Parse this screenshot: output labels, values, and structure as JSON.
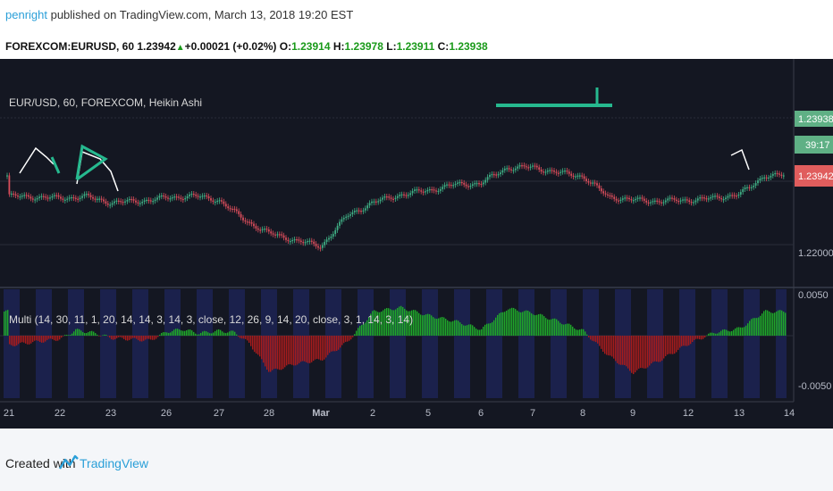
{
  "header": {
    "author": "penright",
    "published_text": " published on TradingView.com, March 13, 2018 19:20 EST",
    "symbol": "FOREXCOM:EURUSD, 60",
    "last": "1.23942",
    "change": "+0.00021 (+0.02%)",
    "o_label": "O:",
    "o_value": "1.23914",
    "h_label": "H:",
    "h_value": "1.23978",
    "l_label": "L:",
    "l_value": "1.23911",
    "c_label": "C:",
    "c_value": "1.23938"
  },
  "main_pane": {
    "legend": "EUR/USD, 60, FOREXCOM, Heikin Ashi",
    "price_tag_1": "1.23938",
    "countdown_tag": "39:17",
    "price_tag_2": "1.23942",
    "axis_tick": "1.22000"
  },
  "indicator_pane": {
    "legend": "Multi (14, 30, 11, 1, 20, 14, 14, 3, 14, 3, close, 12, 26, 9, 14, 20, close, 3, 1, 14, 3, 14)",
    "axis_top": "0.0050",
    "axis_bottom": "-0.0050"
  },
  "x_axis": {
    "labels": [
      "21",
      "22",
      "23",
      "26",
      "27",
      "28",
      "Mar",
      "2",
      "5",
      "6",
      "7",
      "8",
      "9",
      "12",
      "13",
      "14"
    ]
  },
  "footer": {
    "created_with": "Created with",
    "brand": "TradingView"
  },
  "colors": {
    "background": "#141722",
    "up_candle": "#3fae84",
    "down_candle": "#d84d5b",
    "histogram_up": "#1fa82a",
    "histogram_down": "#a81c1c",
    "signal_band": "#1d2458",
    "trendline": "#26b98f",
    "overlay_line": "#ffffff",
    "price_tag_green": "#5fb085",
    "price_tag_red": "#e05d5d"
  },
  "chart_data": {
    "type": "candlestick",
    "title": "EUR/USD, 60, FOREXCOM, Heikin Ashi",
    "x_labels": [
      "21",
      "22",
      "23",
      "26",
      "27",
      "28",
      "Mar",
      "2",
      "5",
      "6",
      "7",
      "8",
      "9",
      "12",
      "13",
      "14"
    ],
    "price_ticks": [
      1.22
    ],
    "last_price": 1.23938,
    "price_series": [
      {
        "x": 0,
        "close": 1.2336
      },
      {
        "x": 0.5,
        "close": 1.2334
      },
      {
        "x": 1,
        "close": 1.233
      },
      {
        "x": 1.5,
        "close": 1.2335
      },
      {
        "x": 2,
        "close": 1.2318
      },
      {
        "x": 2.5,
        "close": 1.2322
      },
      {
        "x": 3,
        "close": 1.2331
      },
      {
        "x": 3.5,
        "close": 1.2337
      },
      {
        "x": 4,
        "close": 1.2325
      },
      {
        "x": 4.5,
        "close": 1.227
      },
      {
        "x": 5,
        "close": 1.2232
      },
      {
        "x": 5.5,
        "close": 1.2213
      },
      {
        "x": 6,
        "close": 1.2195
      },
      {
        "x": 6.5,
        "close": 1.228
      },
      {
        "x": 7,
        "close": 1.2318
      },
      {
        "x": 7.5,
        "close": 1.234
      },
      {
        "x": 8,
        "close": 1.2352
      },
      {
        "x": 8.5,
        "close": 1.2368
      },
      {
        "x": 9,
        "close": 1.2372
      },
      {
        "x": 9.5,
        "close": 1.2415
      },
      {
        "x": 10,
        "close": 1.2417
      },
      {
        "x": 10.5,
        "close": 1.2402
      },
      {
        "x": 11,
        "close": 1.2392
      },
      {
        "x": 11.5,
        "close": 1.2335
      },
      {
        "x": 12,
        "close": 1.2325
      },
      {
        "x": 12.5,
        "close": 1.2322
      },
      {
        "x": 13,
        "close": 1.2325
      },
      {
        "x": 13.5,
        "close": 1.233
      },
      {
        "x": 14,
        "close": 1.2342
      },
      {
        "x": 14.2,
        "close": 1.2358
      },
      {
        "x": 14.5,
        "close": 1.23938
      }
    ],
    "indicator_ylim": [
      -0.005,
      0.005
    ],
    "indicator_ticks": [
      0.005,
      -0.005
    ],
    "indicator_series": [
      {
        "x": 0,
        "value": -0.0012
      },
      {
        "x": 0.5,
        "value": -0.0008
      },
      {
        "x": 1,
        "value": -0.0004
      },
      {
        "x": 1.3,
        "value": 0.0007
      },
      {
        "x": 1.7,
        "value": 0.0003
      },
      {
        "x": 2,
        "value": -0.0003
      },
      {
        "x": 2.7,
        "value": -0.0006
      },
      {
        "x": 3,
        "value": 0.0005
      },
      {
        "x": 3.3,
        "value": 0.0008
      },
      {
        "x": 3.6,
        "value": 0.0003
      },
      {
        "x": 4,
        "value": 0.0006
      },
      {
        "x": 4.3,
        "value": 0.0004
      },
      {
        "x": 4.6,
        "value": -0.001
      },
      {
        "x": 5,
        "value": -0.0045
      },
      {
        "x": 5.5,
        "value": -0.0035
      },
      {
        "x": 6,
        "value": -0.003
      },
      {
        "x": 6.5,
        "value": -0.0008
      },
      {
        "x": 7,
        "value": 0.003
      },
      {
        "x": 7.5,
        "value": 0.0035
      },
      {
        "x": 8,
        "value": 0.0025
      },
      {
        "x": 8.5,
        "value": 0.0018
      },
      {
        "x": 9,
        "value": 0.0008
      },
      {
        "x": 9.5,
        "value": 0.0034
      },
      {
        "x": 10,
        "value": 0.0028
      },
      {
        "x": 10.5,
        "value": 0.0018
      },
      {
        "x": 11,
        "value": 0.0006
      },
      {
        "x": 11.5,
        "value": -0.0025
      },
      {
        "x": 12,
        "value": -0.0046
      },
      {
        "x": 12.5,
        "value": -0.003
      },
      {
        "x": 13,
        "value": -0.001
      },
      {
        "x": 13.5,
        "value": 0.0004
      },
      {
        "x": 14,
        "value": 0.0009
      },
      {
        "x": 14.5,
        "value": 0.003
      }
    ]
  }
}
